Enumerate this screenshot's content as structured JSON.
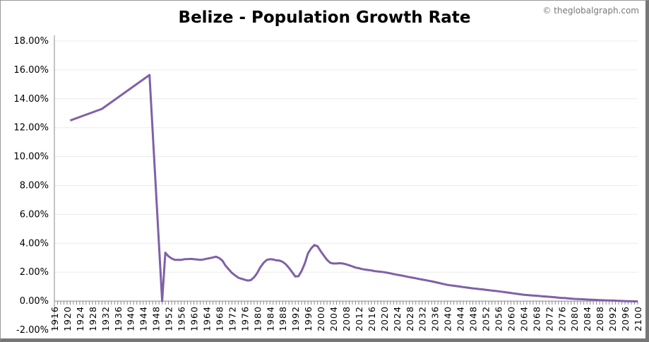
{
  "chart_data": {
    "type": "line",
    "title": "Belize - Population Growth Rate",
    "watermark": "© theglobalgraph.com",
    "xlabel": "",
    "ylabel": "",
    "xlim": [
      1916,
      2100
    ],
    "x_tick_step": 4,
    "ylim": [
      -2,
      18
    ],
    "y_tick_step": 2,
    "y_tick_format": "percent_2dp",
    "grid": "horizontal",
    "legend": "none",
    "line_color": "#7f60a8",
    "x": [
      1921,
      1931,
      1946,
      1950,
      1951,
      1952,
      1953,
      1954,
      1955,
      1956,
      1957,
      1958,
      1959,
      1960,
      1961,
      1962,
      1963,
      1964,
      1965,
      1966,
      1967,
      1968,
      1969,
      1970,
      1971,
      1972,
      1973,
      1974,
      1975,
      1976,
      1977,
      1978,
      1979,
      1980,
      1981,
      1982,
      1983,
      1984,
      1985,
      1986,
      1987,
      1988,
      1989,
      1990,
      1991,
      1992,
      1993,
      1994,
      1995,
      1996,
      1997,
      1998,
      1999,
      2000,
      2001,
      2002,
      2003,
      2004,
      2005,
      2006,
      2007,
      2008,
      2009,
      2010,
      2011,
      2012,
      2013,
      2014,
      2015,
      2016,
      2017,
      2018,
      2019,
      2020,
      2021,
      2022,
      2023,
      2024,
      2025,
      2026,
      2027,
      2028,
      2029,
      2030,
      2031,
      2032,
      2033,
      2034,
      2035,
      2036,
      2037,
      2038,
      2039,
      2040,
      2041,
      2042,
      2043,
      2044,
      2045,
      2046,
      2047,
      2048,
      2049,
      2050,
      2051,
      2052,
      2053,
      2054,
      2055,
      2056,
      2057,
      2058,
      2059,
      2060,
      2061,
      2062,
      2063,
      2064,
      2065,
      2066,
      2067,
      2068,
      2069,
      2070,
      2071,
      2072,
      2073,
      2074,
      2075,
      2076,
      2077,
      2078,
      2079,
      2080,
      2081,
      2082,
      2083,
      2084,
      2085,
      2086,
      2087,
      2088,
      2089,
      2090,
      2091,
      2092,
      2093,
      2094,
      2095,
      2096,
      2097,
      2098,
      2099,
      2100
    ],
    "y": [
      12.5,
      13.3,
      15.65,
      0.0,
      3.35,
      3.1,
      2.95,
      2.85,
      2.85,
      2.85,
      2.9,
      2.9,
      2.92,
      2.9,
      2.88,
      2.85,
      2.88,
      2.93,
      2.97,
      3.02,
      3.07,
      2.98,
      2.8,
      2.45,
      2.2,
      1.95,
      1.78,
      1.62,
      1.55,
      1.48,
      1.42,
      1.45,
      1.65,
      1.95,
      2.35,
      2.65,
      2.85,
      2.9,
      2.88,
      2.82,
      2.8,
      2.72,
      2.55,
      2.3,
      2.0,
      1.7,
      1.72,
      2.1,
      2.6,
      3.3,
      3.65,
      3.88,
      3.8,
      3.45,
      3.15,
      2.85,
      2.65,
      2.6,
      2.6,
      2.62,
      2.6,
      2.55,
      2.48,
      2.4,
      2.32,
      2.28,
      2.22,
      2.18,
      2.15,
      2.12,
      2.08,
      2.05,
      2.03,
      2.0,
      1.96,
      1.92,
      1.87,
      1.83,
      1.79,
      1.75,
      1.7,
      1.66,
      1.62,
      1.58,
      1.53,
      1.49,
      1.45,
      1.41,
      1.37,
      1.32,
      1.27,
      1.22,
      1.17,
      1.12,
      1.09,
      1.06,
      1.03,
      1.0,
      0.97,
      0.94,
      0.91,
      0.88,
      0.86,
      0.83,
      0.81,
      0.78,
      0.76,
      0.73,
      0.71,
      0.68,
      0.65,
      0.62,
      0.59,
      0.56,
      0.53,
      0.5,
      0.47,
      0.44,
      0.42,
      0.4,
      0.38,
      0.37,
      0.35,
      0.33,
      0.32,
      0.3,
      0.28,
      0.26,
      0.24,
      0.22,
      0.21,
      0.19,
      0.17,
      0.15,
      0.14,
      0.13,
      0.12,
      0.11,
      0.1,
      0.09,
      0.08,
      0.07,
      0.06,
      0.05,
      0.04,
      0.04,
      0.03,
      0.02,
      0.01,
      0.0,
      -0.01,
      -0.01,
      -0.02,
      -0.02
    ]
  }
}
